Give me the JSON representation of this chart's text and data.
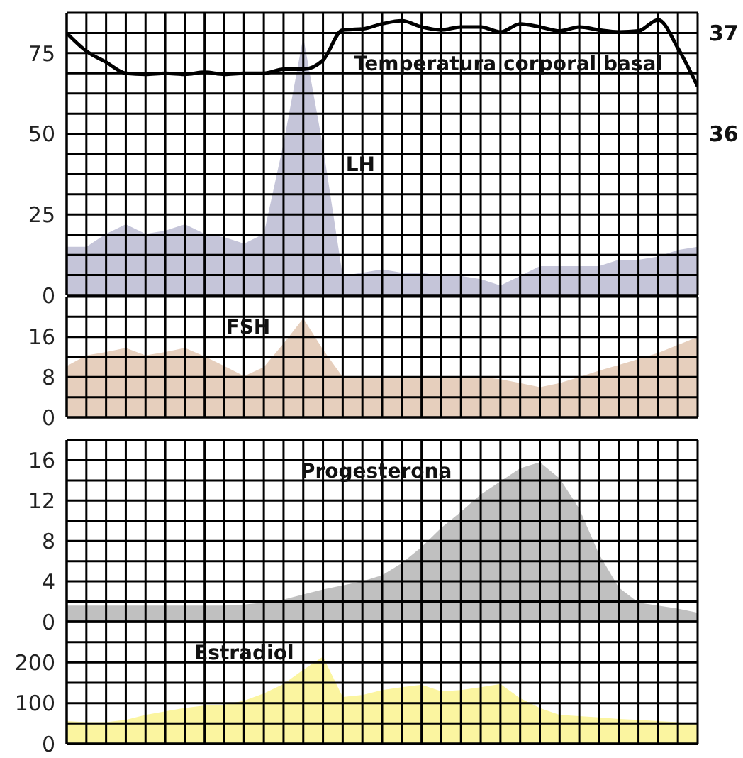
{
  "chart_data": [
    {
      "type": "area",
      "categories": [
        null,
        null,
        null,
        null,
        null,
        null,
        null,
        null,
        null,
        null,
        null,
        null,
        null,
        null,
        null,
        null,
        null,
        null,
        null,
        null,
        null,
        null,
        null,
        null,
        null,
        null,
        null,
        null,
        null,
        null,
        null,
        null,
        null
      ],
      "series": [
        {
          "name": "LH",
          "color": "#c5c5d9",
          "values": [
            15,
            15,
            19,
            22,
            19,
            20,
            22,
            19,
            18,
            16,
            19,
            47,
            80,
            46,
            6,
            7,
            8,
            7,
            7,
            6,
            6,
            5,
            3,
            6,
            9,
            9,
            9,
            9,
            11,
            11,
            12,
            14,
            15
          ]
        },
        {
          "name": "Temperatura corporal basal",
          "type": "line",
          "axis": "y2",
          "color": "#000000",
          "values": [
            37.0,
            36.82,
            36.71,
            36.6,
            36.59,
            36.6,
            36.59,
            36.61,
            36.59,
            36.6,
            36.6,
            36.64,
            36.64,
            36.73,
            37.03,
            37.04,
            37.09,
            37.12,
            37.06,
            37.03,
            37.06,
            37.06,
            37.01,
            37.09,
            37.06,
            37.02,
            37.06,
            37.03,
            37.01,
            37.02,
            37.13,
            36.85,
            36.47
          ]
        }
      ],
      "ylim": [
        0,
        87.5
      ],
      "yticks": [
        0,
        {
          "value": 6.25,
          "label": null
        },
        {
          "value": 12.5,
          "label": null
        },
        {
          "value": 18.75,
          "label": null
        },
        25,
        {
          "value": 31.25,
          "label": null
        },
        {
          "value": 37.5,
          "label": null
        },
        {
          "value": 43.75,
          "label": null
        },
        50,
        {
          "value": 56.25,
          "label": null
        },
        {
          "value": 62.5,
          "label": null
        },
        {
          "value": 68.75,
          "label": null
        },
        75,
        {
          "value": 81.25,
          "label": null
        },
        {
          "value": 87.5,
          "label": null
        }
      ],
      "y2lim": [
        34.4,
        37.2
      ],
      "y2ticks": [
        36,
        37
      ],
      "grid": true,
      "tick_labels": "y"
    },
    {
      "type": "area",
      "categories": [
        null,
        null,
        null,
        null,
        null,
        null,
        null,
        null,
        null,
        null,
        null,
        null,
        null,
        null,
        null,
        null,
        null,
        null,
        null,
        null,
        null,
        null,
        null,
        null,
        null,
        null,
        null,
        null,
        null,
        null,
        null,
        null,
        null
      ],
      "series": [
        {
          "name": "FSH",
          "color": "#e6cfbd",
          "values": [
            10.2,
            12.3,
            13,
            13.8,
            12.3,
            13,
            13.8,
            12.1,
            10.2,
            8.2,
            10,
            14.7,
            19.7,
            13.5,
            8,
            8,
            8,
            8,
            8,
            8,
            8,
            8,
            7.6,
            6.8,
            6,
            6.8,
            8,
            9.3,
            10.4,
            11.6,
            12.8,
            14.4,
            16
          ]
        }
      ],
      "ylim": [
        0,
        24
      ],
      "yticks": [
        0,
        {
          "value": 4,
          "label": null
        },
        8,
        {
          "value": 12,
          "label": null
        },
        16,
        {
          "value": 20,
          "label": null
        },
        {
          "value": 24,
          "label": null
        }
      ],
      "grid": true,
      "tick_labels": "y"
    },
    {
      "type": "area",
      "categories": [
        null,
        null,
        null,
        null,
        null,
        null,
        null,
        null,
        null,
        null,
        null,
        null,
        null,
        null,
        null,
        null,
        null,
        null,
        null,
        null,
        null,
        null,
        null,
        null,
        null,
        null,
        null,
        null,
        null,
        null,
        null,
        null,
        null
      ],
      "series": [
        {
          "name": "Progesterona",
          "color": "#c0c0c0",
          "values": [
            1.6,
            1.6,
            1.6,
            1.6,
            1.6,
            1.6,
            1.6,
            1.6,
            1.6,
            1.7,
            1.9,
            2.2,
            2.7,
            3.2,
            3.6,
            4.0,
            4.6,
            5.8,
            7.4,
            9.3,
            10.9,
            12.6,
            13.9,
            15.2,
            15.8,
            14.2,
            11.2,
            6.7,
            3.4,
            1.9,
            1.6,
            1.3,
            0.9
          ]
        }
      ],
      "ylim": [
        0,
        18
      ],
      "yticks": [
        0,
        {
          "value": 2,
          "label": null
        },
        4,
        {
          "value": 6,
          "label": null
        },
        8,
        {
          "value": 10,
          "label": null
        },
        12,
        {
          "value": 14,
          "label": null
        },
        16,
        {
          "value": 18,
          "label": null
        }
      ],
      "grid": true,
      "tick_labels": "y"
    },
    {
      "type": "area",
      "categories": [
        null,
        null,
        null,
        null,
        null,
        null,
        null,
        null,
        null,
        null,
        null,
        null,
        null,
        null,
        null,
        null,
        null,
        null,
        null,
        null,
        null,
        null,
        null,
        null,
        null,
        null,
        null,
        null,
        null,
        null,
        null,
        null,
        null
      ],
      "series": [
        {
          "name": "Estradiol",
          "color": "#fbf5a0",
          "values": [
            56,
            53,
            53,
            59,
            71,
            80,
            88,
            94,
            96,
            106,
            124,
            147,
            182,
            214,
            115,
            120,
            132,
            139,
            145,
            129,
            132,
            139,
            147,
            112,
            88,
            71,
            68,
            65,
            61,
            59,
            56,
            53,
            49
          ]
        }
      ],
      "ylim": [
        0,
        300
      ],
      "yticks": [
        0,
        {
          "value": 50,
          "label": null
        },
        100,
        {
          "value": 150,
          "label": null
        },
        200,
        {
          "value": 250,
          "label": null
        },
        {
          "value": 300,
          "label": null
        }
      ],
      "grid": true,
      "tick_labels": "y"
    }
  ]
}
